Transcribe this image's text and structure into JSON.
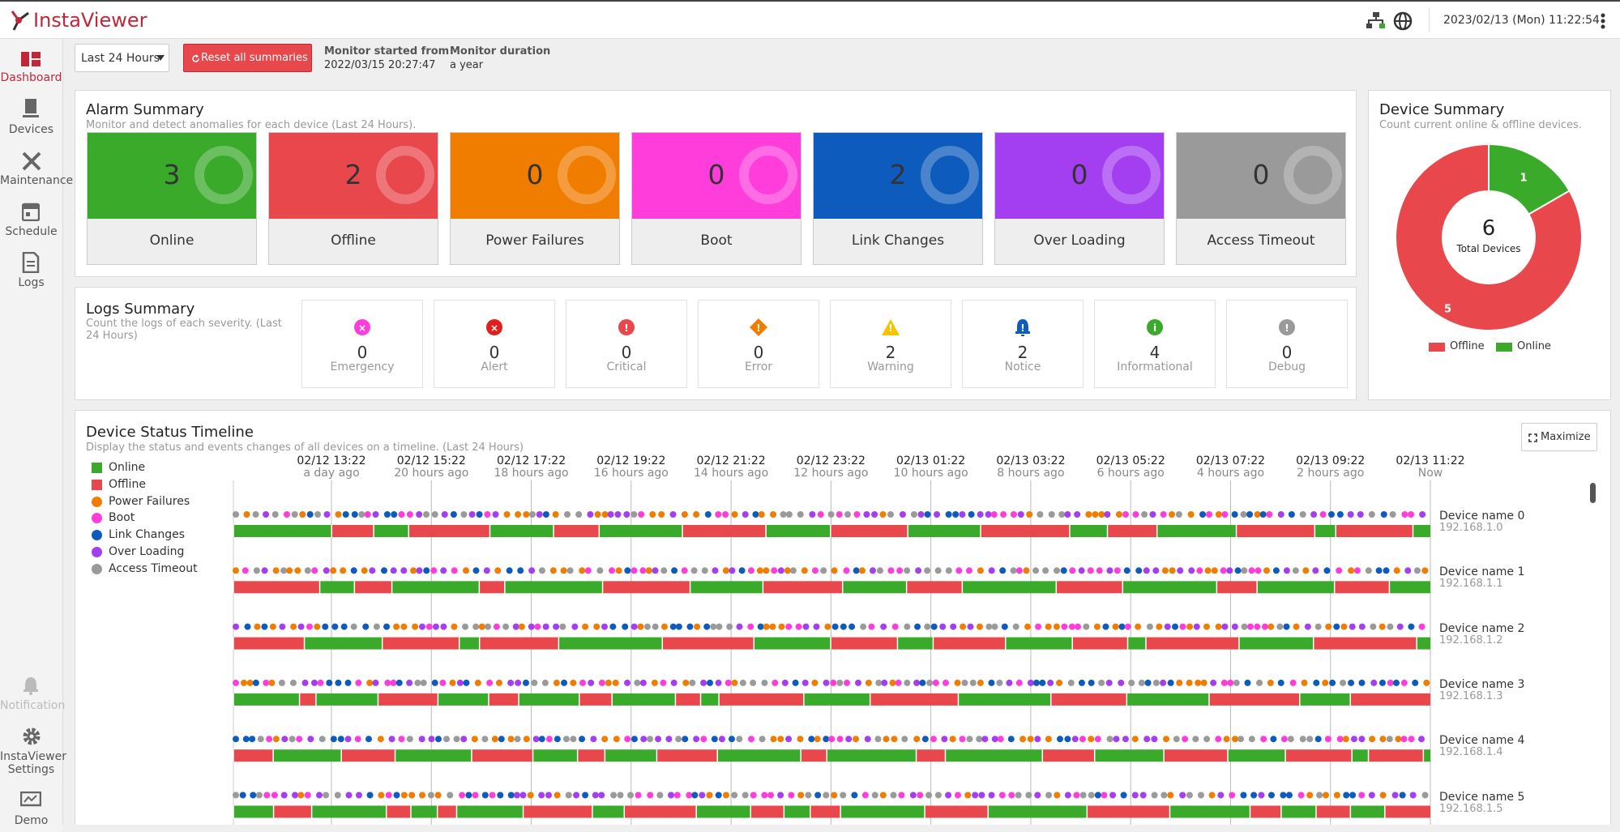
{
  "header": {
    "logo": "InstaViewer",
    "datetime": "2023/02/13 (Mon) 11:22:54"
  },
  "sidebar": [
    "Dashboard",
    "Devices",
    "Maintenance",
    "Schedule",
    "Logs",
    "Notification",
    "InstaViewer Settings",
    "Demo"
  ],
  "toolbar": {
    "range": "Last 24 Hours",
    "reset": "Reset all summaries",
    "started_label": "Monitor started from",
    "started": "2022/03/15 20:27:47",
    "duration_label": "Monitor duration",
    "duration": "a year"
  },
  "alarm_summary": {
    "title": "Alarm Summary",
    "subtitle": "Monitor and detect anomalies for each device (Last 24 Hours).",
    "cards": [
      {
        "label": "Online",
        "count": 3,
        "color": "#3aaa2b"
      },
      {
        "label": "Offline",
        "count": 2,
        "color": "#e8474c"
      },
      {
        "label": "Power Failures",
        "count": 0,
        "color": "#f07d00"
      },
      {
        "label": "Boot",
        "count": 0,
        "color": "#ff3ddb"
      },
      {
        "label": "Link Changes",
        "count": 2,
        "color": "#0c5bbd"
      },
      {
        "label": "Over Loading",
        "count": 0,
        "color": "#a33ff0"
      },
      {
        "label": "Access Timeout",
        "count": 0,
        "color": "#9a9a9a"
      }
    ]
  },
  "logs_summary": {
    "title": "Logs Summary",
    "subtitle": "Count the logs of each severity. (Last 24 Hours)",
    "items": [
      {
        "label": "Emergency",
        "count": 0,
        "color": "#ff3ddb"
      },
      {
        "label": "Alert",
        "count": 0,
        "color": "#e0201f"
      },
      {
        "label": "Critical",
        "count": 0,
        "color": "#e8474c"
      },
      {
        "label": "Error",
        "count": 0,
        "color": "#f07d00"
      },
      {
        "label": "Warning",
        "count": 2,
        "color": "#f5c400"
      },
      {
        "label": "Notice",
        "count": 2,
        "color": "#0c5bbd"
      },
      {
        "label": "Informational",
        "count": 4,
        "color": "#3aaa2b"
      },
      {
        "label": "Debug",
        "count": 0,
        "color": "#9a9a9a"
      }
    ]
  },
  "device_summary": {
    "title": "Device Summary",
    "subtitle": "Count current online & offline devices.",
    "total": 6,
    "total_label": "Total Devices"
  },
  "chart_data": {
    "type": "pie",
    "categories": [
      "Online",
      "Offline"
    ],
    "values": [
      1,
      5
    ],
    "colors": [
      "#3aaa2b",
      "#e8474c"
    ],
    "legend_order": [
      "Offline",
      "Online"
    ]
  },
  "timeline": {
    "title": "Device Status Timeline",
    "subtitle": "Display the status and events changes of all devices on a timeline. (Last 24 Hours)",
    "maximize": "Maximize",
    "legend": [
      {
        "name": "Online",
        "color": "#3aaa2b",
        "shape": "square"
      },
      {
        "name": "Offline",
        "color": "#e8474c",
        "shape": "square"
      },
      {
        "name": "Power Failures",
        "color": "#f07d00",
        "shape": "circle"
      },
      {
        "name": "Boot",
        "color": "#ff3ddb",
        "shape": "circle"
      },
      {
        "name": "Link Changes",
        "color": "#0c5bbd",
        "shape": "circle"
      },
      {
        "name": "Over Loading",
        "color": "#a33ff0",
        "shape": "circle"
      },
      {
        "name": "Access Timeout",
        "color": "#9a9a9a",
        "shape": "circle"
      }
    ],
    "ticks": [
      {
        "time": "02/12 13:22",
        "ago": "a day ago"
      },
      {
        "time": "02/12 15:22",
        "ago": "20 hours ago"
      },
      {
        "time": "02/12 17:22",
        "ago": "18 hours ago"
      },
      {
        "time": "02/12 19:22",
        "ago": "16 hours ago"
      },
      {
        "time": "02/12 21:22",
        "ago": "14 hours ago"
      },
      {
        "time": "02/12 23:22",
        "ago": "12 hours ago"
      },
      {
        "time": "02/13 01:22",
        "ago": "10 hours ago"
      },
      {
        "time": "02/13 03:22",
        "ago": "8 hours ago"
      },
      {
        "time": "02/13 05:22",
        "ago": "6 hours ago"
      },
      {
        "time": "02/13 07:22",
        "ago": "4 hours ago"
      },
      {
        "time": "02/13 09:22",
        "ago": "2 hours ago"
      },
      {
        "time": "02/13 11:22",
        "ago": "Now"
      }
    ],
    "devices": [
      {
        "name": "Device name 0",
        "ip": "192.168.1.0"
      },
      {
        "name": "Device name 1",
        "ip": "192.168.1.1"
      },
      {
        "name": "Device name 2",
        "ip": "192.168.1.2"
      },
      {
        "name": "Device name 3",
        "ip": "192.168.1.3"
      },
      {
        "name": "Device name 4",
        "ip": "192.168.1.4"
      },
      {
        "name": "Device name 5",
        "ip": "192.168.1.5"
      }
    ]
  }
}
